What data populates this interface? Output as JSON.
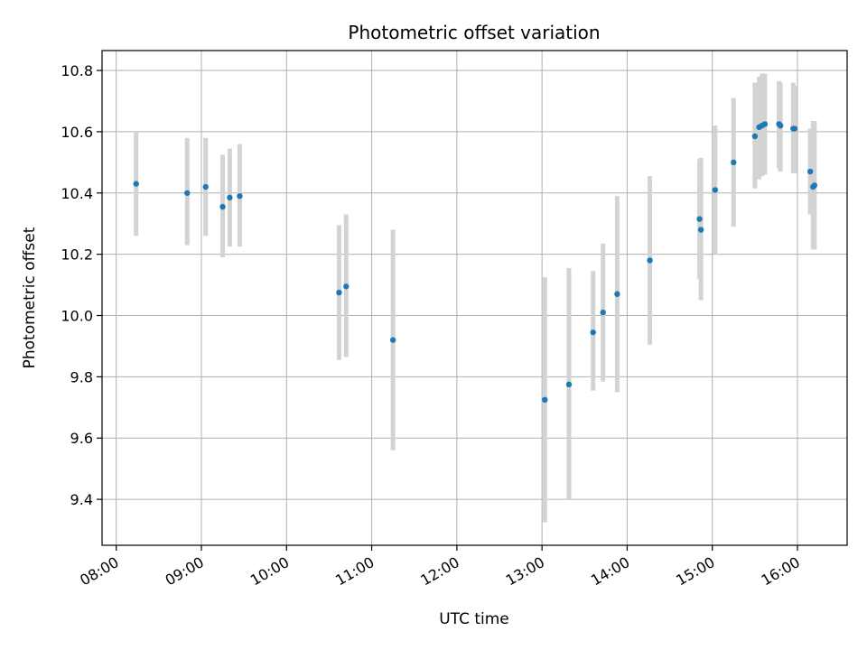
{
  "chart_data": {
    "type": "scatter",
    "title": "Photometric offset variation",
    "xlabel": "UTC time",
    "ylabel": "Photometric offset",
    "xlim": [
      "07:50",
      "16:35"
    ],
    "ylim": [
      9.25,
      10.865
    ],
    "grid": true,
    "x_ticks": [
      "08:00",
      "09:00",
      "10:00",
      "11:00",
      "12:00",
      "13:00",
      "14:00",
      "15:00",
      "16:00"
    ],
    "y_ticks": [
      9.4,
      9.6,
      9.8,
      10.0,
      10.2,
      10.4,
      10.6,
      10.8
    ],
    "y_tick_labels": [
      "9.4",
      "9.6",
      "9.8",
      "10.0",
      "10.2",
      "10.4",
      "10.6",
      "10.8"
    ],
    "colors": {
      "point": "#1f77b4",
      "errorbar": "#d3d3d3",
      "grid": "#b0b0b0"
    },
    "points": [
      {
        "x": "08:14",
        "y": 10.43,
        "ylow": 10.26,
        "yhigh": 10.6
      },
      {
        "x": "08:50",
        "y": 10.4,
        "ylow": 10.23,
        "yhigh": 10.58
      },
      {
        "x": "09:03",
        "y": 10.42,
        "ylow": 10.26,
        "yhigh": 10.58
      },
      {
        "x": "09:15",
        "y": 10.355,
        "ylow": 10.19,
        "yhigh": 10.525
      },
      {
        "x": "09:20",
        "y": 10.385,
        "ylow": 10.225,
        "yhigh": 10.545
      },
      {
        "x": "09:27",
        "y": 10.39,
        "ylow": 10.225,
        "yhigh": 10.56
      },
      {
        "x": "10:37",
        "y": 10.075,
        "ylow": 9.855,
        "yhigh": 10.295
      },
      {
        "x": "10:42",
        "y": 10.095,
        "ylow": 9.865,
        "yhigh": 10.33
      },
      {
        "x": "11:15",
        "y": 9.92,
        "ylow": 9.56,
        "yhigh": 10.28
      },
      {
        "x": "13:02",
        "y": 9.725,
        "ylow": 9.325,
        "yhigh": 10.125
      },
      {
        "x": "13:19",
        "y": 9.775,
        "ylow": 9.4,
        "yhigh": 10.155
      },
      {
        "x": "13:36",
        "y": 9.945,
        "ylow": 9.755,
        "yhigh": 10.145
      },
      {
        "x": "13:43",
        "y": 10.01,
        "ylow": 9.785,
        "yhigh": 10.235
      },
      {
        "x": "13:53",
        "y": 10.07,
        "ylow": 9.75,
        "yhigh": 10.39
      },
      {
        "x": "14:16",
        "y": 10.18,
        "ylow": 9.905,
        "yhigh": 10.455
      },
      {
        "x": "14:51",
        "y": 10.315,
        "ylow": 10.12,
        "yhigh": 10.51
      },
      {
        "x": "14:52",
        "y": 10.28,
        "ylow": 10.05,
        "yhigh": 10.515
      },
      {
        "x": "15:02",
        "y": 10.41,
        "ylow": 10.2,
        "yhigh": 10.62
      },
      {
        "x": "15:15",
        "y": 10.5,
        "ylow": 10.29,
        "yhigh": 10.71
      },
      {
        "x": "15:30",
        "y": 10.585,
        "ylow": 10.415,
        "yhigh": 10.76
      },
      {
        "x": "15:33",
        "y": 10.615,
        "ylow": 10.445,
        "yhigh": 10.78
      },
      {
        "x": "15:35",
        "y": 10.62,
        "ylow": 10.455,
        "yhigh": 10.79
      },
      {
        "x": "15:37",
        "y": 10.625,
        "ylow": 10.46,
        "yhigh": 10.79
      },
      {
        "x": "15:47",
        "y": 10.625,
        "ylow": 10.48,
        "yhigh": 10.765
      },
      {
        "x": "15:48",
        "y": 10.62,
        "ylow": 10.47,
        "yhigh": 10.76
      },
      {
        "x": "15:57",
        "y": 10.61,
        "ylow": 10.465,
        "yhigh": 10.76
      },
      {
        "x": "15:58",
        "y": 10.61,
        "ylow": 10.465,
        "yhigh": 10.75
      },
      {
        "x": "16:09",
        "y": 10.47,
        "ylow": 10.33,
        "yhigh": 10.61
      },
      {
        "x": "16:11",
        "y": 10.42,
        "ylow": 10.215,
        "yhigh": 10.635
      },
      {
        "x": "16:12",
        "y": 10.425,
        "ylow": 10.215,
        "yhigh": 10.635
      }
    ]
  }
}
